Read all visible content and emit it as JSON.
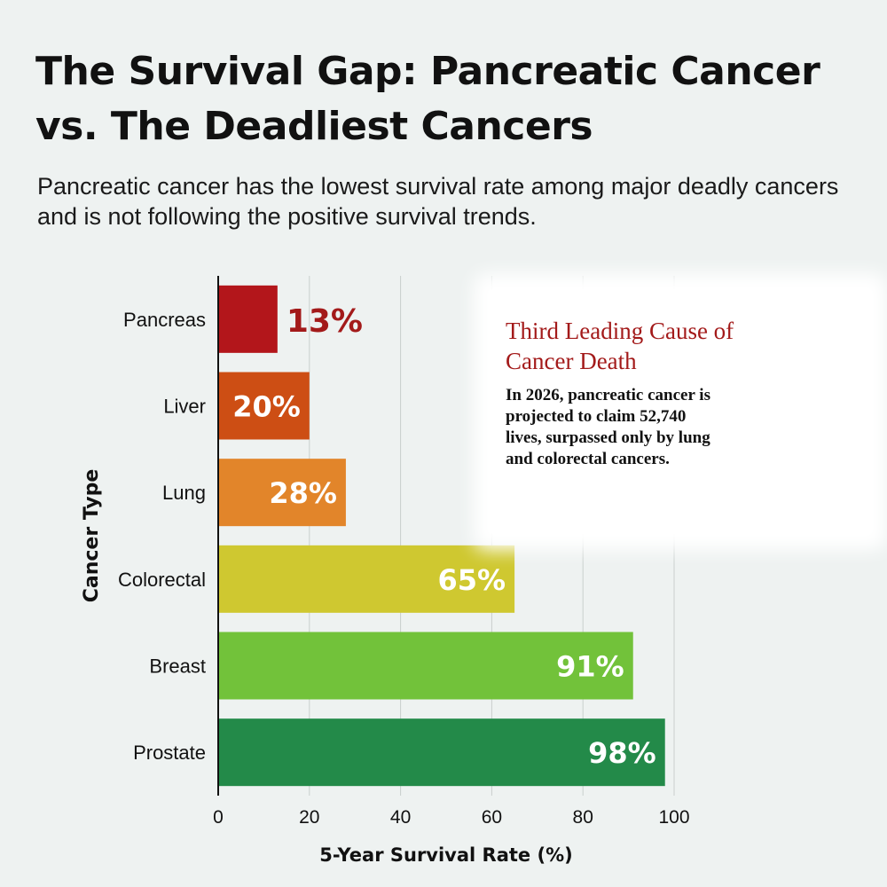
{
  "header": {
    "title": "The Survival Gap: Pancreatic Cancer vs. The Deadliest Cancers",
    "subtitle": "Pancreatic cancer has the lowest survival rate among major deadly cancers and is not following the positive survival trends."
  },
  "callout": {
    "title": "Third Leading Cause of Cancer Death",
    "text": "In 2026, pancreatic cancer is projected to claim 52,740 lives, surpassed only by lung and colorectal cancers."
  },
  "chart_data": {
    "type": "bar",
    "orientation": "horizontal",
    "categories": [
      "Pancreas",
      "Liver",
      "Lung",
      "Colorectal",
      "Breast",
      "Prostate"
    ],
    "values": [
      13,
      20,
      28,
      65,
      91,
      98
    ],
    "value_labels": [
      "13%",
      "20%",
      "28%",
      "65%",
      "91%",
      "98%"
    ],
    "bar_colors": [
      "#b3161b",
      "#cd4e14",
      "#e2852a",
      "#cfc830",
      "#72c23a",
      "#238a49"
    ],
    "xlabel": "5-Year Survival Rate (%)",
    "ylabel": "Cancer Type",
    "xlim": [
      0,
      100
    ],
    "xticks": [
      0,
      20,
      40,
      60,
      80,
      100
    ],
    "grid": true,
    "highlight_color": "#a31a1a"
  }
}
